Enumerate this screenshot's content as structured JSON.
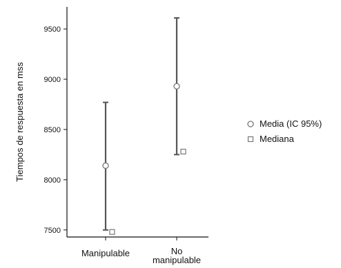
{
  "chart_data": {
    "type": "errorbar",
    "ylabel": "Tiempos de respuesta en mss",
    "xlabel": "",
    "ylim": [
      7430,
      9720
    ],
    "yticks": [
      7500,
      8000,
      8500,
      9000,
      9500
    ],
    "ytick_labels": [
      "7500",
      "8000",
      "8500",
      "9000",
      "9500"
    ],
    "categories": [
      {
        "label": [
          "Manipulable"
        ]
      },
      {
        "label": [
          "No",
          "manipulable"
        ]
      }
    ],
    "series": [
      {
        "name": "Media (IC 95%)",
        "marker": "circle",
        "values": [
          8140,
          8930
        ],
        "ci_lower": [
          7500,
          8250
        ],
        "ci_upper": [
          8770,
          9610
        ]
      },
      {
        "name": "Mediana",
        "marker": "square",
        "values": [
          7480,
          8280
        ]
      }
    ],
    "legend_position": "right",
    "grid": false,
    "colors": {
      "line": "#555555",
      "marker_stroke": "#777777",
      "marker_fill": "#ffffff",
      "axis": "#111111"
    }
  }
}
